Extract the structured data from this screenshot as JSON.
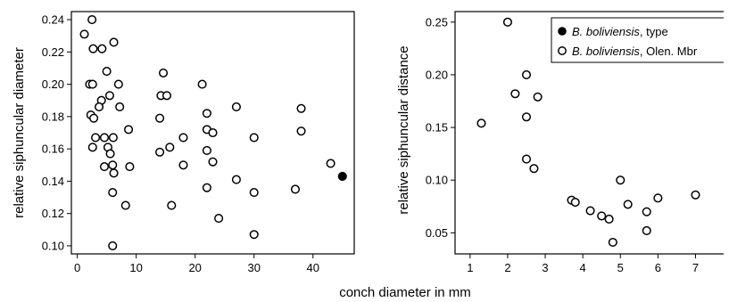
{
  "shared_xlabel": "conch diameter in mm",
  "chart_data": [
    {
      "type": "scatter",
      "title": "",
      "xlabel": "",
      "ylabel": "relative siphuncular diameter",
      "xlim": [
        -1,
        47
      ],
      "ylim": [
        0.095,
        0.245
      ],
      "xticks": [
        0,
        10,
        20,
        30,
        40
      ],
      "yticks": [
        0.1,
        0.12,
        0.14,
        0.16,
        0.18,
        0.2,
        0.22,
        0.24
      ],
      "ytick_labels": [
        "0.10",
        "0.12",
        "0.14",
        "0.16",
        "0.18",
        "0.20",
        "0.22",
        "0.24"
      ],
      "series": [
        {
          "marker": "open-circle",
          "points": [
            [
              1.2,
              0.231
            ],
            [
              2.5,
              0.24
            ],
            [
              2.7,
              0.222
            ],
            [
              4.2,
              0.222
            ],
            [
              6.2,
              0.226
            ],
            [
              2.1,
              0.2
            ],
            [
              2.6,
              0.2
            ],
            [
              5.0,
              0.208
            ],
            [
              7.0,
              0.2
            ],
            [
              5.5,
              0.193
            ],
            [
              4.1,
              0.19
            ],
            [
              3.7,
              0.186
            ],
            [
              2.3,
              0.181
            ],
            [
              2.8,
              0.179
            ],
            [
              7.2,
              0.186
            ],
            [
              4.6,
              0.167
            ],
            [
              3.1,
              0.167
            ],
            [
              6.1,
              0.167
            ],
            [
              2.6,
              0.161
            ],
            [
              5.2,
              0.161
            ],
            [
              5.6,
              0.157
            ],
            [
              4.6,
              0.149
            ],
            [
              6.0,
              0.15
            ],
            [
              6.2,
              0.145
            ],
            [
              8.9,
              0.149
            ],
            [
              8.7,
              0.172
            ],
            [
              6.0,
              0.133
            ],
            [
              8.2,
              0.125
            ],
            [
              6.0,
              0.1
            ],
            [
              14.6,
              0.207
            ],
            [
              14.2,
              0.193
            ],
            [
              15.2,
              0.193
            ],
            [
              21.2,
              0.2
            ],
            [
              14.0,
              0.179
            ],
            [
              22.0,
              0.182
            ],
            [
              27.0,
              0.186
            ],
            [
              22.0,
              0.172
            ],
            [
              23.0,
              0.17
            ],
            [
              15.7,
              0.161
            ],
            [
              14.0,
              0.158
            ],
            [
              18.0,
              0.167
            ],
            [
              22.0,
              0.159
            ],
            [
              23.0,
              0.152
            ],
            [
              18.0,
              0.15
            ],
            [
              30.0,
              0.167
            ],
            [
              27.0,
              0.141
            ],
            [
              22.0,
              0.136
            ],
            [
              30.0,
              0.133
            ],
            [
              16.0,
              0.125
            ],
            [
              24.0,
              0.117
            ],
            [
              30.0,
              0.107
            ],
            [
              38.0,
              0.185
            ],
            [
              38.0,
              0.171
            ],
            [
              37.0,
              0.135
            ],
            [
              43.0,
              0.151
            ]
          ]
        },
        {
          "marker": "filled-circle",
          "points": [
            [
              45.0,
              0.143
            ]
          ]
        }
      ]
    },
    {
      "type": "scatter",
      "title": "",
      "xlabel": "",
      "ylabel": "relative siphuncular distance",
      "xlim": [
        0.6,
        8.2
      ],
      "ylim": [
        0.03,
        0.26
      ],
      "xticks": [
        1,
        2,
        3,
        4,
        5,
        6,
        7,
        8
      ],
      "yticks": [
        0.05,
        0.1,
        0.15,
        0.2,
        0.25
      ],
      "ytick_labels": [
        "0.05",
        "0.10",
        "0.15",
        "0.20",
        "0.25"
      ],
      "legend": {
        "placement": "top-right",
        "entries": [
          {
            "species": "B. boliviensis",
            "suffix": ", type",
            "marker": "filled-circle"
          },
          {
            "species": "B. boliviensis",
            "suffix": ", Olen. Mbr",
            "marker": "open-circle"
          }
        ]
      },
      "series": [
        {
          "name": "B. boliviensis, Olen. Mbr",
          "marker": "open-circle",
          "points": [
            [
              1.3,
              0.154
            ],
            [
              2.0,
              0.25
            ],
            [
              2.2,
              0.182
            ],
            [
              2.5,
              0.2
            ],
            [
              2.5,
              0.16
            ],
            [
              2.8,
              0.179
            ],
            [
              2.5,
              0.12
            ],
            [
              2.7,
              0.111
            ],
            [
              3.7,
              0.081
            ],
            [
              3.8,
              0.079
            ],
            [
              4.2,
              0.071
            ],
            [
              4.5,
              0.066
            ],
            [
              4.7,
              0.063
            ],
            [
              4.8,
              0.041
            ],
            [
              5.0,
              0.1
            ],
            [
              5.2,
              0.077
            ],
            [
              5.7,
              0.07
            ],
            [
              5.7,
              0.052
            ],
            [
              6.0,
              0.083
            ],
            [
              7.0,
              0.086
            ]
          ]
        }
      ]
    }
  ]
}
